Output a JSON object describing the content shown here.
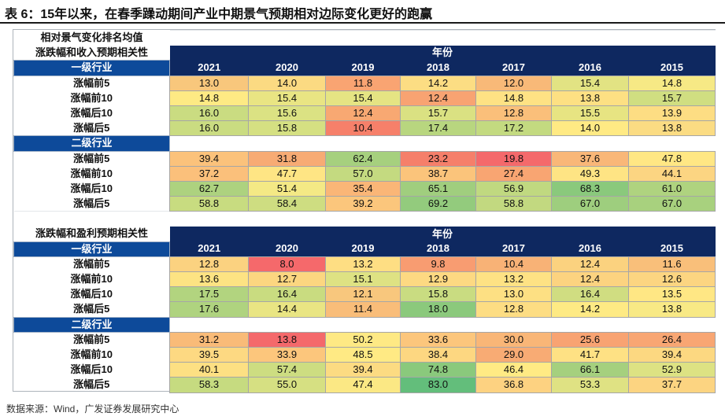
{
  "title": "表 6：15年以来，在春季躁动期间产业中期景气预期相对边际变化更好的跑赢",
  "header_label": "相对景气变化排名均值",
  "years_label": "年份",
  "years": [
    "2021",
    "2020",
    "2019",
    "2018",
    "2017",
    "2016",
    "2015"
  ],
  "sections": [
    {
      "name": "涨跌幅和收入预期相关性",
      "groups": [
        {
          "label": "一级行业",
          "rows": [
            {
              "label": "涨幅前5",
              "values": [
                "13.0",
                "14.0",
                "11.8",
                "14.2",
                "12.0",
                "15.4",
                "14.8"
              ],
              "colors": [
                "#f8c77c",
                "#fbda82",
                "#f9a472",
                "#fcdd83",
                "#f8b978",
                "#e2e383",
                "#f6e985"
              ]
            },
            {
              "label": "涨幅前10",
              "values": [
                "14.8",
                "15.4",
                "15.4",
                "12.4",
                "14.8",
                "13.8",
                "15.7"
              ],
              "colors": [
                "#feea84",
                "#e9e583",
                "#e5e483",
                "#f8a372",
                "#fee284",
                "#fde083",
                "#d0de81"
              ]
            },
            {
              "label": "涨幅后10",
              "values": [
                "16.0",
                "15.6",
                "12.4",
                "15.7",
                "12.8",
                "15.5",
                "13.9"
              ],
              "colors": [
                "#cadc81",
                "#dbe283",
                "#f8a872",
                "#dae182",
                "#fabf7a",
                "#e7e482",
                "#fddd83"
              ]
            },
            {
              "label": "涨幅后5",
              "values": [
                "16.0",
                "15.8",
                "10.4",
                "17.4",
                "17.2",
                "14.0",
                "13.8"
              ],
              "colors": [
                "#cadc81",
                "#d5e082",
                "#f6806a",
                "#b8d67f",
                "#c3da80",
                "#ffea84",
                "#fbdc83"
              ]
            }
          ]
        },
        {
          "label": "二级行业",
          "rows": [
            {
              "label": "涨幅前5",
              "values": [
                "39.4",
                "31.8",
                "62.4",
                "23.2",
                "19.8",
                "37.6",
                "47.8"
              ],
              "colors": [
                "#fbc27b",
                "#f7ab74",
                "#a6d07e",
                "#f57f6a",
                "#f4696b",
                "#f9b778",
                "#ffe784"
              ]
            },
            {
              "label": "涨幅前10",
              "values": [
                "37.2",
                "47.7",
                "57.0",
                "38.7",
                "27.4",
                "49.3",
                "44.1"
              ],
              "colors": [
                "#fbc07b",
                "#fee584",
                "#c4da80",
                "#fbc47b",
                "#f8a572",
                "#fee484",
                "#fcd582"
              ]
            },
            {
              "label": "涨幅后10",
              "values": [
                "62.7",
                "51.4",
                "35.4",
                "65.1",
                "56.9",
                "68.3",
                "61.0"
              ],
              "colors": [
                "#add27f",
                "#f4e985",
                "#fab677",
                "#a0ce7e",
                "#c0d980",
                "#8ac97c",
                "#afd37f"
              ]
            },
            {
              "label": "涨幅后5",
              "values": [
                "58.8",
                "58.4",
                "39.2",
                "69.2",
                "58.8",
                "67.0",
                "67.0"
              ],
              "colors": [
                "#c8dc80",
                "#cedd81",
                "#fbc67c",
                "#93cb7d",
                "#c2d980",
                "#9ece7e",
                "#a8d17e"
              ]
            }
          ]
        }
      ]
    },
    {
      "name": "涨跌幅和盈利预期相关性",
      "groups": [
        {
          "label": "一级行业",
          "rows": [
            {
              "label": "涨幅前5",
              "values": [
                "12.8",
                "8.0",
                "13.2",
                "9.8",
                "10.4",
                "12.4",
                "11.6"
              ],
              "colors": [
                "#fbd280",
                "#f5696b",
                "#fede83",
                "#f89c71",
                "#f8b276",
                "#fbd27f",
                "#f9bf7a"
              ]
            },
            {
              "label": "涨幅前10",
              "values": [
                "13.6",
                "12.7",
                "15.1",
                "12.9",
                "13.2",
                "12.4",
                "12.6"
              ],
              "colors": [
                "#fde383",
                "#fcd680",
                "#dee283",
                "#fdd982",
                "#fee284",
                "#fcd380",
                "#fcd581"
              ]
            },
            {
              "label": "涨幅后10",
              "values": [
                "17.5",
                "16.4",
                "12.1",
                "15.8",
                "13.0",
                "16.4",
                "13.5"
              ],
              "colors": [
                "#b2d47f",
                "#c9dc80",
                "#f8c77d",
                "#c9dc81",
                "#fde083",
                "#d0dd81",
                "#ffe784"
              ]
            },
            {
              "label": "涨幅后5",
              "values": [
                "17.6",
                "14.4",
                "11.4",
                "18.0",
                "12.8",
                "14.2",
                "13.8"
              ],
              "colors": [
                "#afd37f",
                "#e9e583",
                "#f9bd79",
                "#8bc97c",
                "#fddd83",
                "#feea84",
                "#f8e985"
              ]
            }
          ]
        },
        {
          "label": "二级行业",
          "rows": [
            {
              "label": "涨幅前5",
              "values": [
                "31.2",
                "13.8",
                "50.2",
                "33.6",
                "30.0",
                "25.6",
                "26.4"
              ],
              "colors": [
                "#f9bb78",
                "#f4696b",
                "#fee984",
                "#fcc67c",
                "#f9b677",
                "#f8a372",
                "#f8a673"
              ]
            },
            {
              "label": "涨幅前10",
              "values": [
                "39.5",
                "33.9",
                "48.5",
                "38.4",
                "29.0",
                "41.7",
                "39.4"
              ],
              "colors": [
                "#fdd982",
                "#fcc67c",
                "#ffea84",
                "#fdd781",
                "#f8ab74",
                "#fee184",
                "#fcd881"
              ]
            },
            {
              "label": "涨幅后10",
              "values": [
                "40.1",
                "57.4",
                "39.4",
                "74.8",
                "46.4",
                "66.1",
                "52.9"
              ],
              "colors": [
                "#fde083",
                "#cddd81",
                "#fcdb82",
                "#8ac97c",
                "#ffea84",
                "#a5d07e",
                "#dde283"
              ]
            },
            {
              "label": "涨幅后5",
              "values": [
                "58.3",
                "55.0",
                "47.4",
                "83.0",
                "36.8",
                "53.3",
                "37.7"
              ],
              "colors": [
                "#c6db80",
                "#d6e082",
                "#fbe884",
                "#63be7b",
                "#fdd281",
                "#dfe283",
                "#fcd481"
              ]
            }
          ]
        }
      ]
    }
  ],
  "source": "数据来源：Wind，广发证券发展研究中心"
}
